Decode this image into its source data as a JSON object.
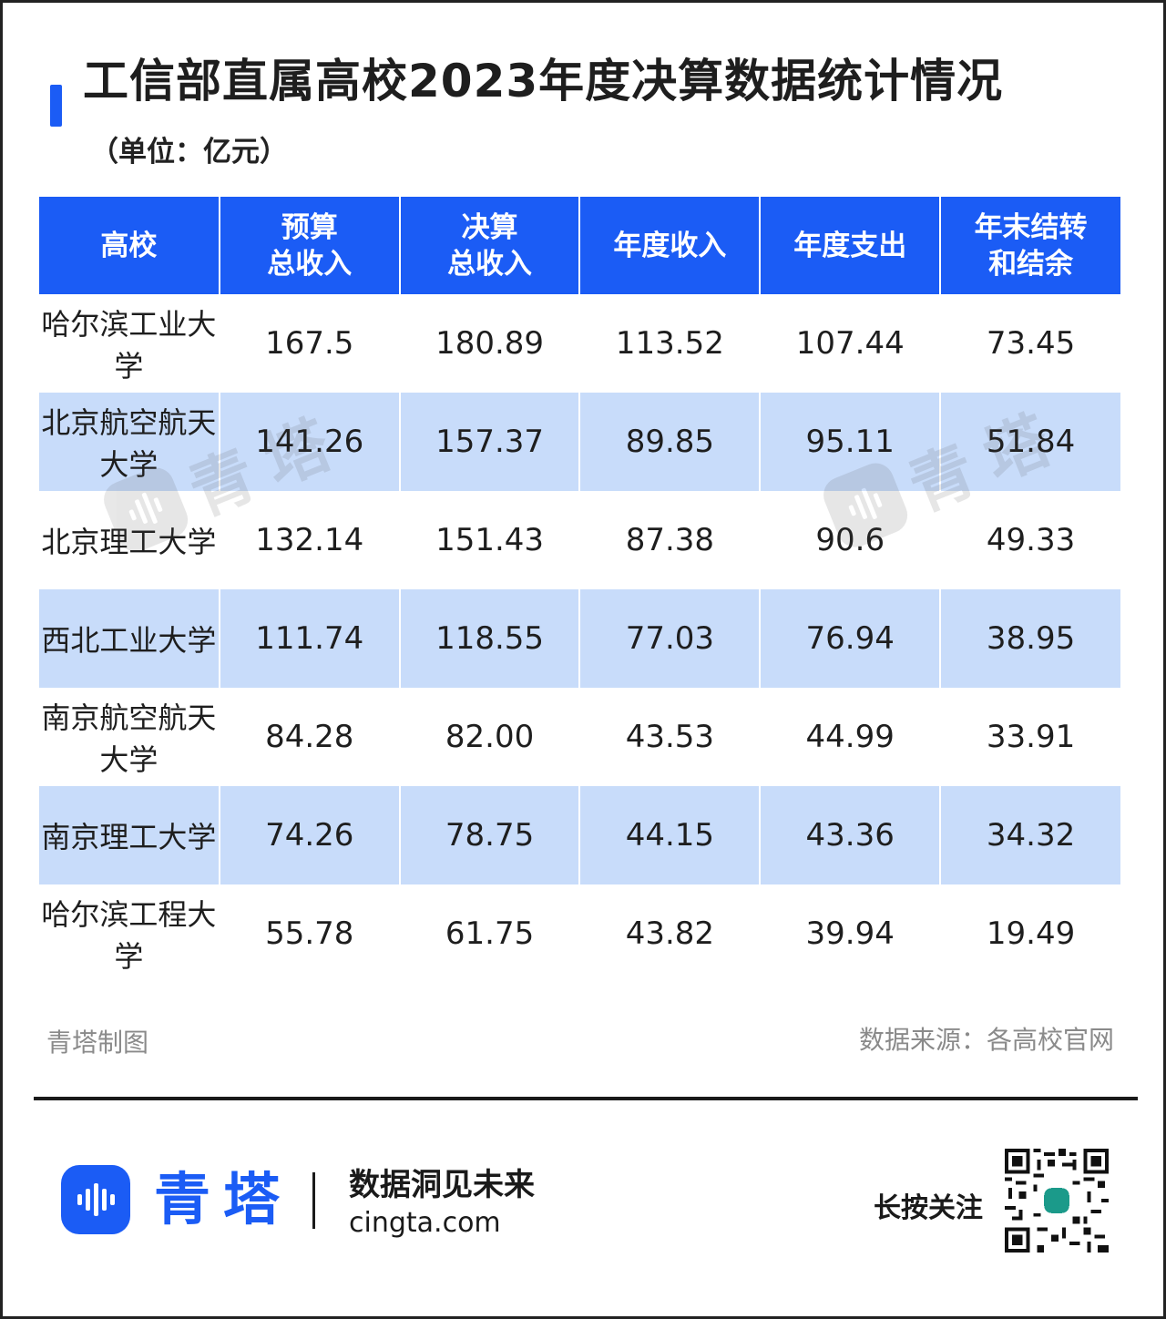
{
  "title": "工信部直属高校2023年度决算数据统计情况",
  "unit": "（单位：亿元）",
  "table": {
    "headers": [
      [
        "高校"
      ],
      [
        "预算",
        "总收入"
      ],
      [
        "决算",
        "总收入"
      ],
      [
        "年度收入"
      ],
      [
        "年度支出"
      ],
      [
        "年末结转",
        "和结余"
      ]
    ],
    "rows": [
      [
        "哈尔滨工业大学",
        "167.5",
        "180.89",
        "113.52",
        "107.44",
        "73.45"
      ],
      [
        "北京航空航天大学",
        "141.26",
        "157.37",
        "89.85",
        "95.11",
        "51.84"
      ],
      [
        "北京理工大学",
        "132.14",
        "151.43",
        "87.38",
        "90.6",
        "49.33"
      ],
      [
        "西北工业大学",
        "111.74",
        "118.55",
        "77.03",
        "76.94",
        "38.95"
      ],
      [
        "南京航空航天大学",
        "84.28",
        "82.00",
        "43.53",
        "44.99",
        "33.91"
      ],
      [
        "南京理工大学",
        "74.26",
        "78.75",
        "44.15",
        "43.36",
        "34.32"
      ],
      [
        "哈尔滨工程大学",
        "55.78",
        "61.75",
        "43.82",
        "39.94",
        "19.49"
      ]
    ]
  },
  "watermark": {
    "text": "青塔",
    "icon": "waveform-icon"
  },
  "footer": {
    "credit": "青塔制图",
    "source": "数据来源：各高校官网",
    "brand_name": "青塔",
    "brand_icon": "waveform-icon",
    "slogan": "数据洞见未来",
    "website": "cingta.com",
    "follow_text": "长按关注",
    "qr_icon": "qr-code-icon"
  },
  "colors": {
    "accent": "#1b5cf5",
    "row_highlight": "#c8dcfa",
    "muted_text": "#8a8a8a"
  }
}
